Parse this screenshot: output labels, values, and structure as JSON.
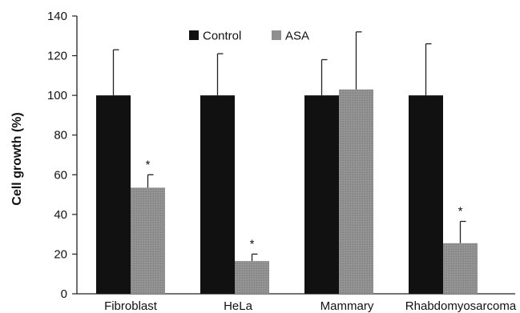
{
  "chart_data": {
    "type": "bar",
    "title": "",
    "xlabel": "",
    "ylabel": "Cell growth (%)",
    "ylim": [
      0,
      140
    ],
    "yticks": [
      0,
      20,
      40,
      60,
      80,
      100,
      120,
      140
    ],
    "categories": [
      "Fibroblast",
      "HeLa",
      "Mammary",
      "Rhabdomyosarcoma"
    ],
    "series": [
      {
        "name": "Control",
        "values": [
          100,
          100,
          100,
          100
        ],
        "error": [
          23,
          21,
          18,
          26
        ],
        "color": "#111111"
      },
      {
        "name": "ASA",
        "values": [
          53.5,
          16.5,
          103,
          25.5
        ],
        "error": [
          6.5,
          3.5,
          29,
          11
        ],
        "color": "#8f8f8f"
      }
    ],
    "annotations": [
      {
        "category": "Fibroblast",
        "series": "ASA",
        "text": "*"
      },
      {
        "category": "HeLa",
        "series": "ASA",
        "text": "*"
      },
      {
        "category": "Rhabdomyosarcoma",
        "series": "ASA",
        "text": "*"
      }
    ],
    "legend": {
      "position": "top-center",
      "orientation": "horizontal"
    },
    "grid": false
  }
}
